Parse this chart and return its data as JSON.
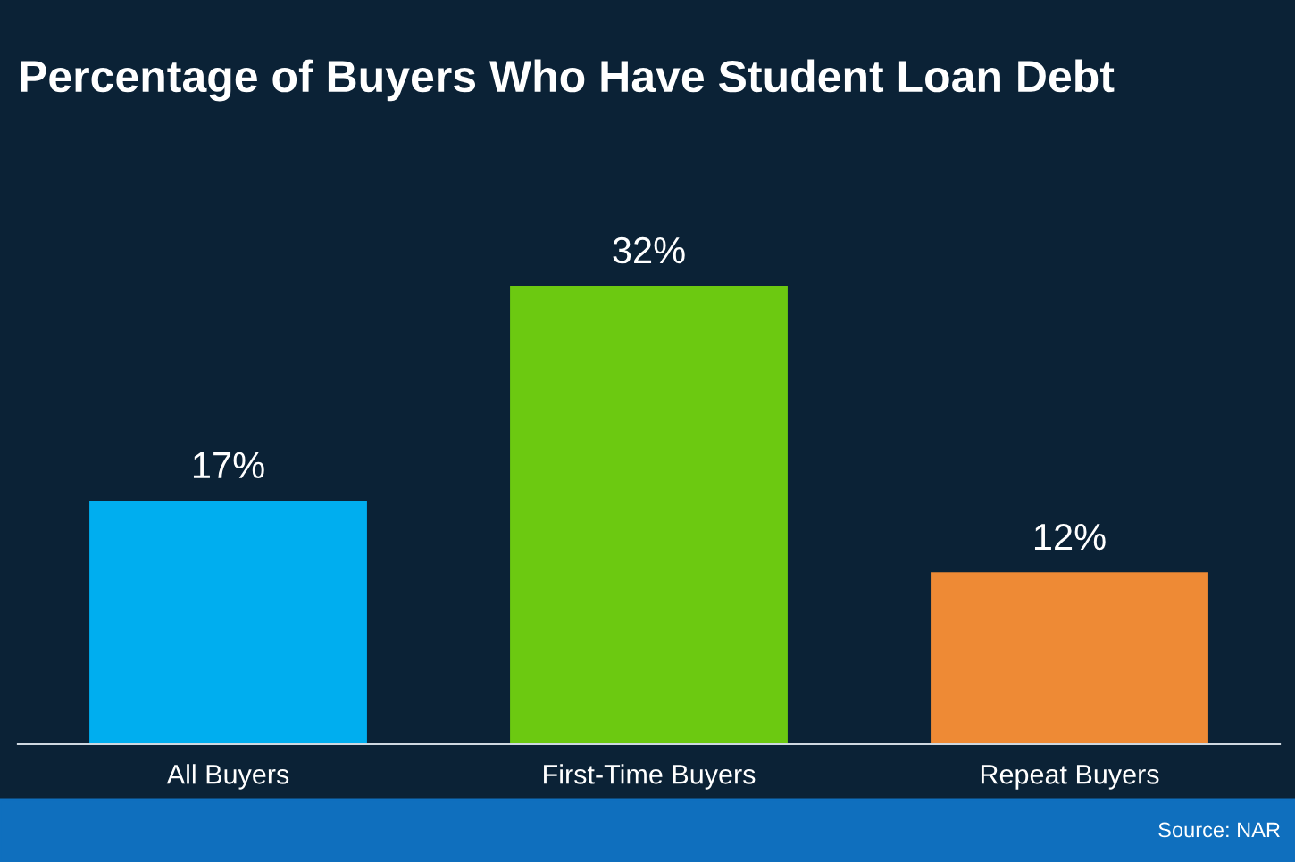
{
  "chart_data": {
    "type": "bar",
    "title": "Percentage of Buyers Who Have Student Loan Debt",
    "categories": [
      "All Buyers",
      "First-Time Buyers",
      "Repeat Buyers"
    ],
    "values": [
      17,
      32,
      12
    ],
    "colors": [
      "#00aeef",
      "#6cc911",
      "#ee8a35"
    ],
    "value_labels": [
      "17%",
      "32%",
      "12%"
    ],
    "grid": false,
    "legend": false,
    "tick_labels": "x",
    "annotations": [
      "Source: NAR"
    ]
  }
}
